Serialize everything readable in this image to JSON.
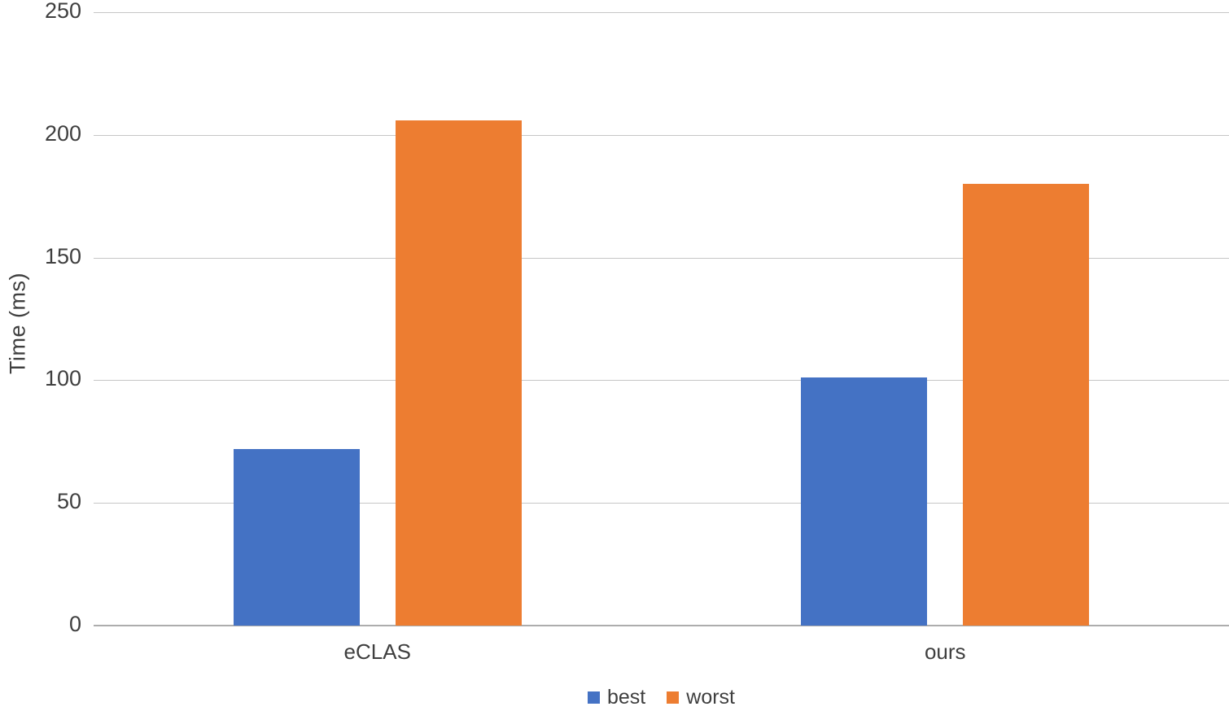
{
  "chart_data": {
    "type": "bar",
    "title": "",
    "xlabel": "",
    "ylabel": "Time (ms)",
    "categories": [
      "eCLAS",
      "ours"
    ],
    "series": [
      {
        "name": "best",
        "color": "#4472C4",
        "values": [
          72,
          101
        ]
      },
      {
        "name": "worst",
        "color": "#ED7D31",
        "values": [
          206,
          180
        ]
      }
    ],
    "ylim": [
      0,
      250
    ],
    "yticks": [
      0,
      50,
      100,
      150,
      200,
      250
    ],
    "grid": true,
    "legend_position": "bottom",
    "grid_color": "#c6c6c6",
    "axis_color": "#adadad",
    "text_color": "#3f3f3f"
  }
}
